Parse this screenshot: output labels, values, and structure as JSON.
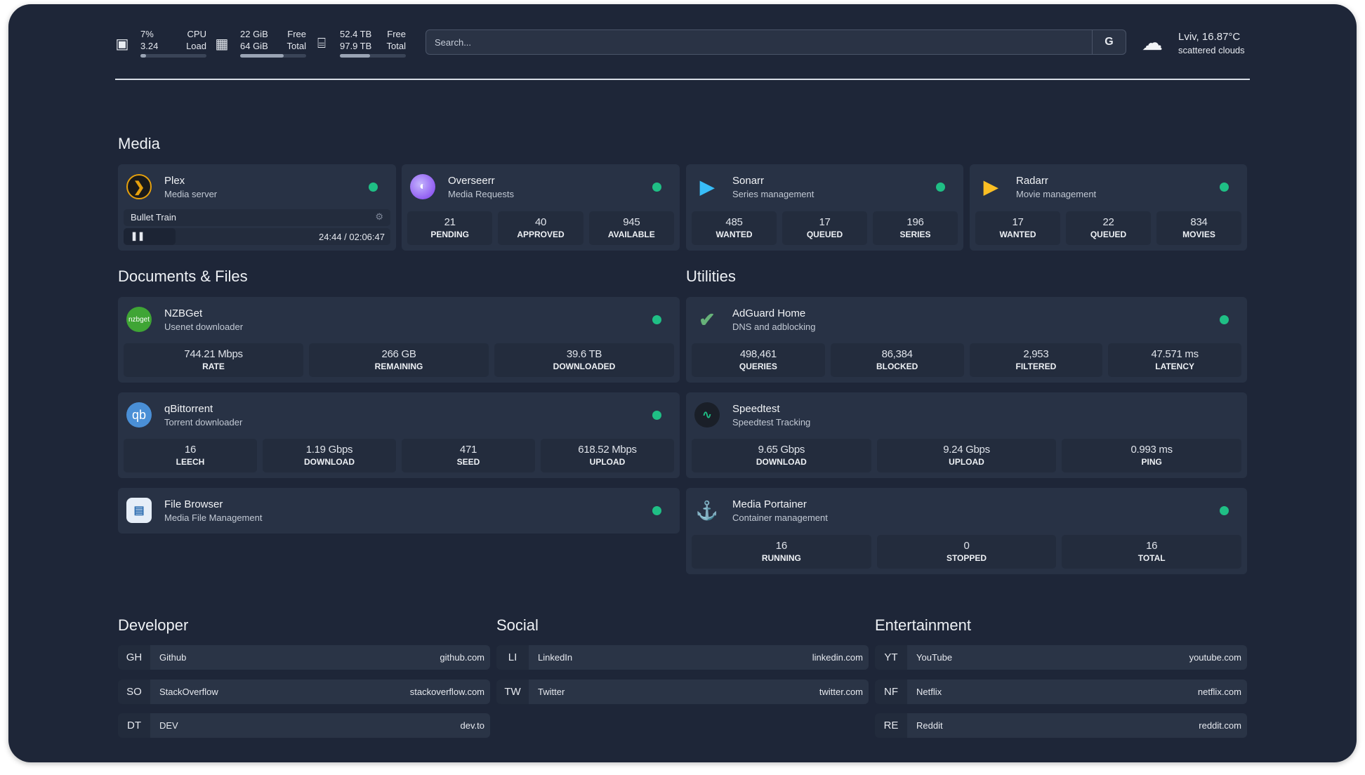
{
  "system": {
    "cpu": {
      "icon": "cpu-icon",
      "value1": "7%",
      "value2": "3.24",
      "label1": "CPU",
      "label2": "Load",
      "usage_percent": 7
    },
    "memory": {
      "icon": "memory-icon",
      "value1": "22 GiB",
      "value2": "64 GiB",
      "label1": "Free",
      "label2": "Total",
      "usage_percent": 66
    },
    "disk": {
      "icon": "disk-icon",
      "value1": "52.4 TB",
      "value2": "97.9 TB",
      "label1": "Free",
      "label2": "Total",
      "usage_percent": 46
    }
  },
  "search": {
    "placeholder": "Search...",
    "provider_label": "G"
  },
  "weather": {
    "icon": "cloud-icon",
    "location_temp": "Lviv, 16.87°C",
    "condition": "scattered clouds"
  },
  "sections": {
    "media": "Media",
    "documents": "Documents & Files",
    "utilities": "Utilities",
    "developer": "Developer",
    "social": "Social",
    "entertainment": "Entertainment"
  },
  "colors": {
    "background": "#1e2638",
    "card": "#283245",
    "stat": "#232c3d",
    "status_online": "#1fbf85"
  },
  "plex": {
    "title": "Plex",
    "subtitle": "Media server",
    "now_playing": "Bullet Train",
    "time": "24:44 / 02:06:47",
    "progress_percent": 19.5
  },
  "services": [
    {
      "id": "overseerr",
      "title": "Overseerr",
      "subtitle": "Media Requests",
      "icon": "overseerr-icon",
      "stats": [
        {
          "v": "21",
          "k": "PENDING"
        },
        {
          "v": "40",
          "k": "APPROVED"
        },
        {
          "v": "945",
          "k": "AVAILABLE"
        }
      ]
    },
    {
      "id": "sonarr",
      "title": "Sonarr",
      "subtitle": "Series management",
      "icon": "sonarr-icon",
      "stats": [
        {
          "v": "485",
          "k": "WANTED"
        },
        {
          "v": "17",
          "k": "QUEUED"
        },
        {
          "v": "196",
          "k": "SERIES"
        }
      ]
    },
    {
      "id": "radarr",
      "title": "Radarr",
      "subtitle": "Movie management",
      "icon": "radarr-icon",
      "stats": [
        {
          "v": "17",
          "k": "WANTED"
        },
        {
          "v": "22",
          "k": "QUEUED"
        },
        {
          "v": "834",
          "k": "MOVIES"
        }
      ]
    },
    {
      "id": "nzbget",
      "title": "NZBGet",
      "subtitle": "Usenet downloader",
      "icon": "nzbget-icon",
      "icon_text": "nzbget",
      "stats": [
        {
          "v": "744.21 Mbps",
          "k": "RATE"
        },
        {
          "v": "266 GB",
          "k": "REMAINING"
        },
        {
          "v": "39.6 TB",
          "k": "DOWNLOADED"
        }
      ]
    },
    {
      "id": "qbittorrent",
      "title": "qBittorrent",
      "subtitle": "Torrent downloader",
      "icon": "qbittorrent-icon",
      "icon_text": "qb",
      "stats": [
        {
          "v": "16",
          "k": "LEECH"
        },
        {
          "v": "1.19 Gbps",
          "k": "DOWNLOAD"
        },
        {
          "v": "471",
          "k": "SEED"
        },
        {
          "v": "618.52 Mbps",
          "k": "UPLOAD"
        }
      ]
    },
    {
      "id": "filebrowser",
      "title": "File Browser",
      "subtitle": "Media File Management",
      "icon": "file-browser-icon",
      "stats": []
    },
    {
      "id": "adguard",
      "title": "AdGuard Home",
      "subtitle": "DNS and adblocking",
      "icon": "adguard-shield-icon",
      "stats": [
        {
          "v": "498,461",
          "k": "QUERIES"
        },
        {
          "v": "86,384",
          "k": "BLOCKED"
        },
        {
          "v": "2,953",
          "k": "FILTERED"
        },
        {
          "v": "47.571 ms",
          "k": "LATENCY"
        }
      ]
    },
    {
      "id": "speedtest",
      "title": "Speedtest",
      "subtitle": "Speedtest Tracking",
      "icon": "speedtest-pulse-icon",
      "nodot": true,
      "stats": [
        {
          "v": "9.65 Gbps",
          "k": "DOWNLOAD"
        },
        {
          "v": "9.24 Gbps",
          "k": "UPLOAD"
        },
        {
          "v": "0.993 ms",
          "k": "PING"
        }
      ]
    },
    {
      "id": "portainer",
      "title": "Media Portainer",
      "subtitle": "Container management",
      "icon": "portainer-icon",
      "stats": [
        {
          "v": "16",
          "k": "RUNNING"
        },
        {
          "v": "0",
          "k": "STOPPED"
        },
        {
          "v": "16",
          "k": "TOTAL"
        }
      ]
    }
  ],
  "bookmarks": {
    "developer": [
      {
        "abbr": "GH",
        "name": "Github",
        "url": "github.com"
      },
      {
        "abbr": "SO",
        "name": "StackOverflow",
        "url": "stackoverflow.com"
      },
      {
        "abbr": "DT",
        "name": "DEV",
        "url": "dev.to"
      }
    ],
    "social": [
      {
        "abbr": "LI",
        "name": "LinkedIn",
        "url": "linkedin.com"
      },
      {
        "abbr": "TW",
        "name": "Twitter",
        "url": "twitter.com"
      }
    ],
    "entertainment": [
      {
        "abbr": "YT",
        "name": "YouTube",
        "url": "youtube.com"
      },
      {
        "abbr": "NF",
        "name": "Netflix",
        "url": "netflix.com"
      },
      {
        "abbr": "RE",
        "name": "Reddit",
        "url": "reddit.com"
      }
    ]
  }
}
